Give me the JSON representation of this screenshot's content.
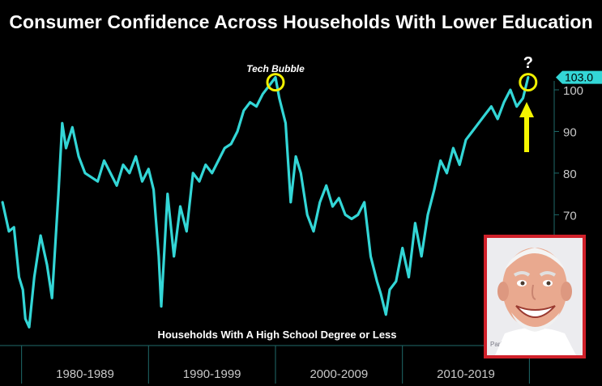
{
  "title": "Consumer Confidence Across Households With Lower Education",
  "colors": {
    "background": "#000000",
    "line": "#33d6d6",
    "highlight_circle": "#f0f000",
    "arrow": "#f5f500",
    "axis": "#1f6a6a",
    "tick_text": "#c8c8c8",
    "value_tag": "#33d6d6",
    "photo_border": "#d0202a"
  },
  "annotations": {
    "tech_bubble": "Tech Bubble",
    "question_mark": "?",
    "series_label": "Households With A High School Degree or Less"
  },
  "meme_image": {
    "icon": "smiling-elderly-man-photo",
    "background_text": "Paricot"
  },
  "chart_data": {
    "type": "line",
    "title": "Consumer Confidence Across Households With Lower Education",
    "xlabel": "",
    "ylabel": "",
    "x_range": [
      1978.3,
      2021.7
    ],
    "ylim": [
      38,
      107
    ],
    "y_ticks": [
      70,
      80,
      90,
      100
    ],
    "x_period_labels": [
      "1980-1989",
      "1990-1999",
      "2000-2009",
      "2010-2019"
    ],
    "x_period_boundaries": [
      1980,
      1990,
      2000,
      2010,
      2020
    ],
    "last_value_label": "103.0",
    "grid": false,
    "series": [
      {
        "name": "Households With A High School Degree or Less",
        "x": [
          1978.5,
          1979.0,
          1979.4,
          1979.8,
          1980.1,
          1980.3,
          1980.6,
          1981.0,
          1981.5,
          1982.0,
          1982.4,
          1982.9,
          1983.2,
          1983.5,
          1984.0,
          1984.5,
          1985.0,
          1985.5,
          1986.0,
          1986.5,
          1987.0,
          1987.5,
          1988.0,
          1988.5,
          1989.0,
          1989.5,
          1990.0,
          1990.4,
          1990.8,
          1991.0,
          1991.5,
          1992.0,
          1992.5,
          1993.0,
          1993.5,
          1994.0,
          1994.5,
          1995.0,
          1995.5,
          1996.0,
          1996.5,
          1997.0,
          1997.5,
          1998.0,
          1998.5,
          1999.0,
          1999.5,
          2000.0,
          2000.3,
          2000.8,
          2001.2,
          2001.6,
          2002.0,
          2002.5,
          2003.0,
          2003.5,
          2004.0,
          2004.5,
          2005.0,
          2005.5,
          2006.0,
          2006.5,
          2007.0,
          2007.5,
          2008.0,
          2008.3,
          2008.7,
          2009.0,
          2009.5,
          2010.0,
          2010.5,
          2011.0,
          2011.5,
          2012.0,
          2012.5,
          2013.0,
          2013.5,
          2014.0,
          2014.5,
          2015.0,
          2015.5,
          2016.0,
          2016.5,
          2017.0,
          2017.5,
          2018.0,
          2018.5,
          2019.0,
          2019.5,
          2019.9
        ],
        "values": [
          73,
          66,
          67,
          55,
          52,
          45,
          43,
          55,
          65,
          58,
          50,
          75,
          92,
          86,
          91,
          84,
          80,
          79,
          78,
          83,
          80,
          77,
          82,
          80,
          84,
          78,
          81,
          76,
          60,
          48,
          75,
          60,
          72,
          66,
          80,
          78,
          82,
          80,
          83,
          86,
          87,
          90,
          95,
          97,
          96,
          99,
          101,
          103,
          98,
          92,
          73,
          84,
          80,
          70,
          66,
          73,
          77,
          72,
          74,
          70,
          69,
          70,
          73,
          60,
          54,
          51,
          46,
          52,
          54,
          62,
          55,
          68,
          60,
          70,
          76,
          83,
          80,
          86,
          82,
          88,
          90,
          92,
          94,
          96,
          93,
          97,
          100,
          96,
          98,
          103
        ]
      }
    ]
  }
}
